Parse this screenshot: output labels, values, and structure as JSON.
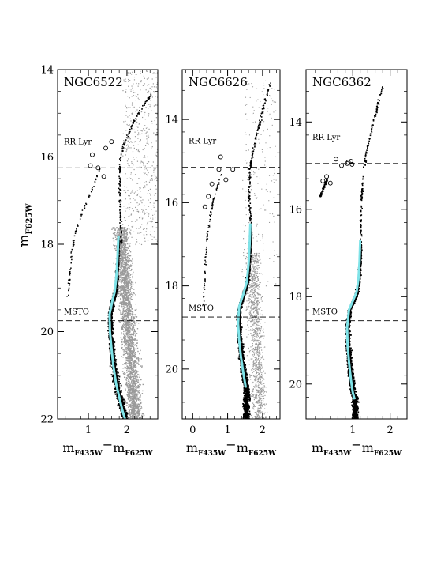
{
  "figure": {
    "ylabel_main": "m",
    "ylabel_sub": "F625W",
    "colors": {
      "background_star": "#9a9a9a",
      "star": "#000000",
      "ridge": "#7fe3e8"
    }
  },
  "chart_data": [
    {
      "type": "scatter",
      "title": "NGC6522",
      "xlabel": {
        "a": "m",
        "a_sub": "F435W",
        "b": "m",
        "b_sub": "F625W",
        "sep": "−"
      },
      "ylabel": "mF625W",
      "xlim": [
        0.2,
        2.8
      ],
      "ylim": [
        22,
        14
      ],
      "xticks": [
        1,
        2
      ],
      "yticks": [
        14,
        16,
        18,
        20,
        22
      ],
      "rr_lyr": {
        "label": "RR Lyr",
        "points": [
          [
            1.45,
            15.8
          ],
          [
            1.6,
            15.65
          ],
          [
            1.1,
            15.95
          ],
          [
            1.05,
            16.2
          ],
          [
            1.25,
            16.25
          ],
          [
            1.4,
            16.45
          ]
        ]
      },
      "mode": "field",
      "hb_mag": 16.25,
      "msto_label": "MSTO",
      "msto_mag": 19.75,
      "ridge": {
        "x": [
          1.78,
          1.75,
          1.72,
          1.68,
          1.62,
          1.55,
          1.56,
          1.6,
          1.65,
          1.72,
          1.8,
          1.88,
          1.95
        ],
        "y": [
          17.8,
          18.4,
          18.8,
          19.1,
          19.3,
          19.6,
          20.0,
          20.4,
          20.8,
          21.2,
          21.5,
          21.8,
          22.0
        ]
      },
      "rgb": {
        "x": [
          1.85,
          1.8,
          1.8,
          1.82,
          1.9,
          2.0,
          2.15,
          2.35,
          2.5,
          2.6
        ],
        "y": [
          18.0,
          17.0,
          16.5,
          16.0,
          15.7,
          15.5,
          15.2,
          14.9,
          14.7,
          14.55
        ]
      },
      "bhb": {
        "x": [
          1.3,
          1.1,
          0.85,
          0.65,
          0.55,
          0.5,
          0.45
        ],
        "y": [
          16.2,
          16.7,
          17.2,
          17.7,
          18.2,
          18.7,
          19.2
        ]
      }
    },
    {
      "type": "scatter",
      "title": "NGC6626",
      "xlabel": {
        "a": "m",
        "a_sub": "F435W",
        "b": "m",
        "b_sub": "F625W",
        "sep": "−"
      },
      "ylabel": "mF625W",
      "xlim": [
        -0.3,
        2.5
      ],
      "ylim": [
        21.2,
        12.8
      ],
      "xticks": [
        0,
        1,
        2
      ],
      "yticks": [
        14,
        16,
        18,
        20
      ],
      "rr_lyr": {
        "label": "RR Lyr",
        "points": [
          [
            0.8,
            14.9
          ],
          [
            0.75,
            15.2
          ],
          [
            1.15,
            15.2
          ],
          [
            0.95,
            15.45
          ],
          [
            0.55,
            15.55
          ],
          [
            0.45,
            15.85
          ],
          [
            0.35,
            16.1
          ]
        ]
      },
      "mode": "cluster",
      "hb_mag": 15.15,
      "msto_label": "MSTO",
      "msto_mag": 18.75,
      "ridge": {
        "x": [
          1.65,
          1.63,
          1.6,
          1.55,
          1.45,
          1.33,
          1.3,
          1.33,
          1.38,
          1.45,
          1.52
        ],
        "y": [
          16.5,
          17.0,
          17.5,
          17.9,
          18.2,
          18.5,
          18.9,
          19.3,
          19.7,
          20.1,
          20.45
        ]
      },
      "rgb": {
        "x": [
          1.65,
          1.6,
          1.62,
          1.7,
          1.8,
          1.95,
          2.1,
          2.2
        ],
        "y": [
          16.5,
          15.8,
          15.2,
          14.8,
          14.4,
          13.9,
          13.4,
          13.1
        ]
      },
      "bhb": {
        "x": [
          0.8,
          0.55,
          0.4,
          0.35,
          0.32,
          0.3
        ],
        "y": [
          15.3,
          16.0,
          16.8,
          17.4,
          18.0,
          18.5
        ]
      }
    },
    {
      "type": "scatter",
      "title": "NGC6362",
      "xlabel": {
        "a": "m",
        "a_sub": "F435W",
        "b": "m",
        "b_sub": "F625W",
        "sep": "−"
      },
      "ylabel": "mF625W",
      "xlim": [
        -0.25,
        2.45
      ],
      "ylim": [
        20.8,
        12.8
      ],
      "xticks": [
        1,
        2
      ],
      "yticks": [
        14,
        16,
        18,
        20
      ],
      "rr_lyr": {
        "label": "RR Lyr",
        "points": [
          [
            0.55,
            14.85
          ],
          [
            0.7,
            15.0
          ],
          [
            0.85,
            14.95
          ],
          [
            0.95,
            14.9
          ],
          [
            0.98,
            14.97
          ],
          [
            0.88,
            14.92
          ],
          [
            0.3,
            15.25
          ],
          [
            0.2,
            15.35
          ],
          [
            0.4,
            15.4
          ]
        ]
      },
      "mode": "sparse",
      "hb_mag": 14.95,
      "msto_label": "MSTO",
      "msto_mag": 18.55,
      "ridge": {
        "x": [
          1.2,
          1.18,
          1.15,
          1.1,
          1.0,
          0.9,
          0.85,
          0.86,
          0.9,
          0.95,
          1.0,
          1.05
        ],
        "y": [
          16.7,
          17.2,
          17.6,
          17.9,
          18.1,
          18.3,
          18.7,
          19.1,
          19.5,
          19.9,
          20.2,
          20.35
        ]
      },
      "rgb": {
        "x": [
          1.2,
          1.2,
          1.25,
          1.35,
          1.5,
          1.65,
          1.8
        ],
        "y": [
          16.7,
          16.0,
          15.3,
          14.7,
          14.1,
          13.6,
          13.15
        ]
      },
      "bhb": {
        "x": [
          0.3,
          0.2,
          0.12
        ],
        "y": [
          15.3,
          15.5,
          15.7
        ]
      }
    }
  ]
}
